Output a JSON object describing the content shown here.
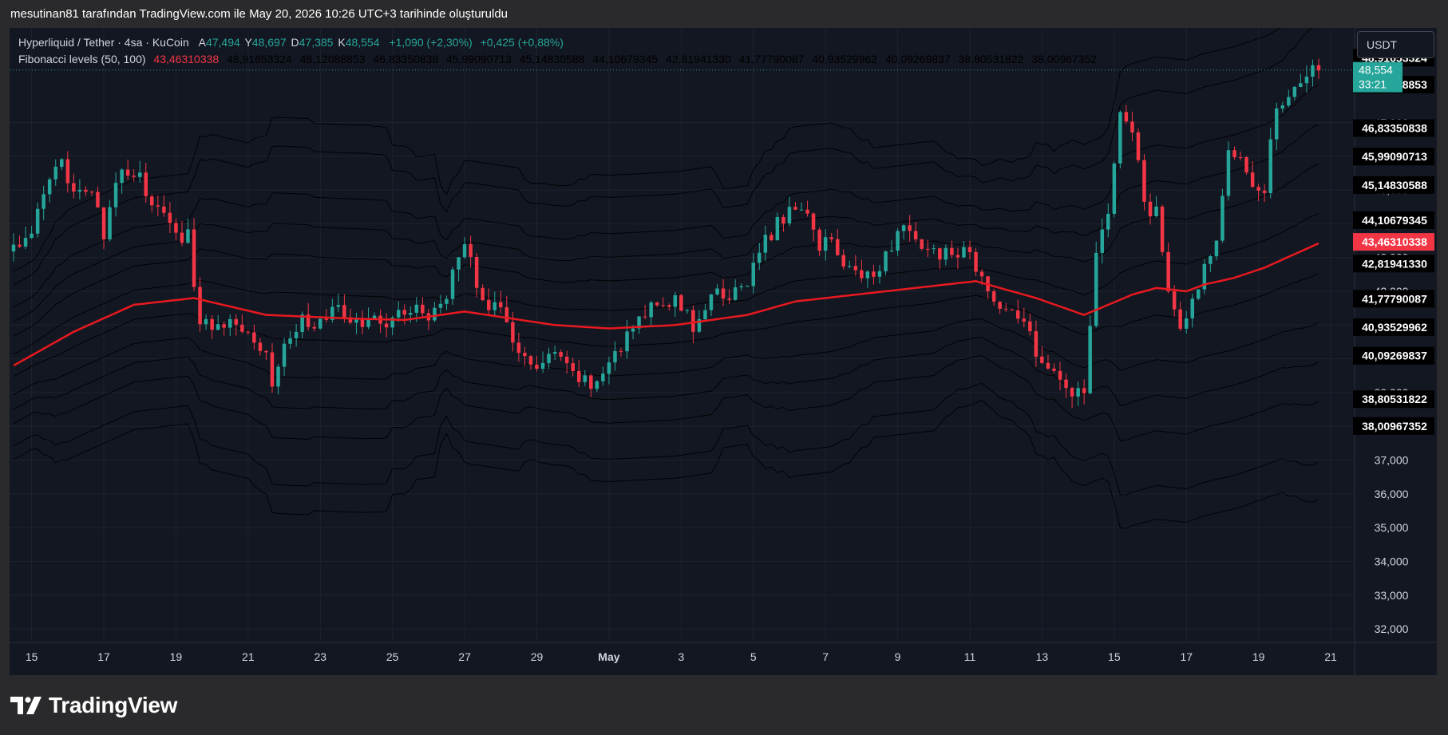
{
  "caption": "mesutinan81 tarafından TradingView.com ile May 20, 2026 10:26 UTC+3 tarihinde oluşturuldu",
  "brand": "TradingView",
  "currency_button": "USDT",
  "legend": {
    "symbol": "Hyperliquid / Tether · 4sa · KuCoin",
    "open_label": "A",
    "open": "47,494",
    "high_label": "Y",
    "high": "48,697",
    "low_label": "D",
    "low": "47,385",
    "close_label": "K",
    "close": "48,554",
    "change": "+1,090 (+2,30%)",
    "change2": "+0,425 (+0,88%)",
    "indicator": "Fibonacci levels (50, 100)",
    "indicator_values": [
      "43,46310338",
      "48,91653324",
      "48,12088853",
      "46,83350838",
      "45,99090713",
      "45,14830588",
      "44,10679345",
      "42,81941330",
      "41,77790087",
      "40,93529962",
      "40,09269837",
      "38,80531822",
      "38,00967352"
    ]
  },
  "colors": {
    "up": "#26a69a",
    "down": "#f23645",
    "mid_line": "#e8191f",
    "bands": "#000000",
    "background": "#131722"
  },
  "price_labels": [
    {
      "value": "48,91653324",
      "price": 48.9165,
      "style": "black"
    },
    {
      "value": "48,12088853",
      "price": 48.1209,
      "style": "black"
    },
    {
      "value": "46,83350838",
      "price": 46.8335,
      "style": "black"
    },
    {
      "value": "45,99090713",
      "price": 45.9909,
      "style": "black"
    },
    {
      "value": "45,14830588",
      "price": 45.1483,
      "style": "black"
    },
    {
      "value": "44,10679345",
      "price": 44.1068,
      "style": "black"
    },
    {
      "value": "43,46310338",
      "price": 43.4631,
      "style": "red"
    },
    {
      "value": "42,81941330",
      "price": 42.8194,
      "style": "black"
    },
    {
      "value": "41,77790087",
      "price": 41.7779,
      "style": "black"
    },
    {
      "value": "40,93529962",
      "price": 40.9353,
      "style": "black"
    },
    {
      "value": "40,09269837",
      "price": 40.0927,
      "style": "black"
    },
    {
      "value": "38,80531822",
      "price": 38.8053,
      "style": "black"
    },
    {
      "value": "38,00967352",
      "price": 38.0097,
      "style": "black"
    }
  ],
  "current_price": {
    "value": "48,554",
    "countdown": "33:21",
    "price": 48.554
  },
  "chart_data": {
    "type": "candlestick",
    "title": "Hyperliquid / Tether · 4sa · KuCoin",
    "y_ticks": [
      "32,000",
      "33,000",
      "34,000",
      "35,000",
      "36,000",
      "37,000",
      "38,000",
      "39,000",
      "40,000",
      "41,000",
      "42,000",
      "43,000",
      "44,000",
      "45,000",
      "46,000",
      "47,000"
    ],
    "y_tick_values": [
      32,
      33,
      34,
      35,
      36,
      37,
      38,
      39,
      40,
      41,
      42,
      43,
      44,
      45,
      46,
      47
    ],
    "ylim": [
      31.6,
      49.8
    ],
    "x_ticks": [
      {
        "label": "15",
        "bar": 3
      },
      {
        "label": "17",
        "bar": 15
      },
      {
        "label": "19",
        "bar": 27
      },
      {
        "label": "21",
        "bar": 39
      },
      {
        "label": "23",
        "bar": 51
      },
      {
        "label": "25",
        "bar": 63
      },
      {
        "label": "27",
        "bar": 75
      },
      {
        "label": "29",
        "bar": 87
      },
      {
        "label": "May",
        "bar": 99,
        "bold": true
      },
      {
        "label": "3",
        "bar": 111
      },
      {
        "label": "5",
        "bar": 123
      },
      {
        "label": "7",
        "bar": 135
      },
      {
        "label": "9",
        "bar": 147
      },
      {
        "label": "11",
        "bar": 159
      },
      {
        "label": "13",
        "bar": 171
      },
      {
        "label": "15",
        "bar": 183
      },
      {
        "label": "17",
        "bar": 195
      },
      {
        "label": "19",
        "bar": 207
      },
      {
        "label": "21",
        "bar": 219
      }
    ],
    "anchors": [
      [
        0,
        43.3
      ],
      [
        3,
        43.8
      ],
      [
        6,
        45.2
      ],
      [
        8,
        45.7
      ],
      [
        10,
        45.2
      ],
      [
        13,
        44.9
      ],
      [
        15,
        43.6
      ],
      [
        18,
        45.7
      ],
      [
        21,
        45.3
      ],
      [
        24,
        44.4
      ],
      [
        27,
        43.6
      ],
      [
        29,
        43.7
      ],
      [
        31,
        41.0
      ],
      [
        35,
        41.1
      ],
      [
        39,
        41.0
      ],
      [
        42,
        40.1
      ],
      [
        43,
        39.3
      ],
      [
        45,
        40.4
      ],
      [
        48,
        41.2
      ],
      [
        51,
        41.0
      ],
      [
        54,
        41.5
      ],
      [
        57,
        41.0
      ],
      [
        60,
        41.1
      ],
      [
        63,
        41.2
      ],
      [
        66,
        41.5
      ],
      [
        69,
        41.3
      ],
      [
        72,
        42.0
      ],
      [
        75,
        43.4
      ],
      [
        78,
        41.8
      ],
      [
        81,
        41.3
      ],
      [
        84,
        40.3
      ],
      [
        87,
        39.6
      ],
      [
        90,
        40.1
      ],
      [
        93,
        39.5
      ],
      [
        96,
        39.2
      ],
      [
        98,
        39.7
      ],
      [
        101,
        40.3
      ],
      [
        104,
        41.2
      ],
      [
        107,
        41.8
      ],
      [
        110,
        41.7
      ],
      [
        113,
        41.0
      ],
      [
        116,
        41.8
      ],
      [
        119,
        41.9
      ],
      [
        122,
        42.3
      ],
      [
        125,
        43.5
      ],
      [
        128,
        44.2
      ],
      [
        131,
        44.6
      ],
      [
        134,
        43.4
      ],
      [
        136,
        43.4
      ],
      [
        139,
        42.6
      ],
      [
        142,
        42.5
      ],
      [
        145,
        43.0
      ],
      [
        147,
        43.9
      ],
      [
        150,
        43.4
      ],
      [
        153,
        43.2
      ],
      [
        156,
        43.0
      ],
      [
        159,
        43.2
      ],
      [
        161,
        42.2
      ],
      [
        164,
        41.7
      ],
      [
        167,
        41.2
      ],
      [
        170,
        40.3
      ],
      [
        173,
        39.4
      ],
      [
        176,
        39.0
      ],
      [
        178,
        39.2
      ],
      [
        180,
        42.9
      ],
      [
        182,
        44.4
      ],
      [
        184,
        47.2
      ],
      [
        186,
        46.8
      ],
      [
        188,
        44.5
      ],
      [
        190,
        44.3
      ],
      [
        192,
        42.1
      ],
      [
        194,
        40.9
      ],
      [
        196,
        41.6
      ],
      [
        198,
        42.7
      ],
      [
        200,
        43.7
      ],
      [
        202,
        46.3
      ],
      [
        204,
        46.0
      ],
      [
        206,
        45.3
      ],
      [
        208,
        45.1
      ],
      [
        210,
        47.5
      ],
      [
        213,
        48.1
      ],
      [
        215,
        48.4
      ],
      [
        217,
        48.6
      ]
    ],
    "n_bars": 218,
    "mid_line": [
      [
        0,
        39.8
      ],
      [
        10,
        40.8
      ],
      [
        20,
        41.6
      ],
      [
        30,
        41.8
      ],
      [
        42,
        41.3
      ],
      [
        55,
        41.2
      ],
      [
        65,
        41.15
      ],
      [
        75,
        41.4
      ],
      [
        90,
        41.0
      ],
      [
        99,
        40.9
      ],
      [
        110,
        41.0
      ],
      [
        122,
        41.3
      ],
      [
        130,
        41.7
      ],
      [
        140,
        41.9
      ],
      [
        150,
        42.1
      ],
      [
        160,
        42.3
      ],
      [
        170,
        41.8
      ],
      [
        178,
        41.3
      ],
      [
        182,
        41.6
      ],
      [
        186,
        41.9
      ],
      [
        190,
        42.1
      ],
      [
        195,
        42.0
      ],
      [
        198,
        42.2
      ],
      [
        203,
        42.4
      ],
      [
        208,
        42.7
      ],
      [
        213,
        43.1
      ],
      [
        218,
        43.5
      ]
    ]
  }
}
